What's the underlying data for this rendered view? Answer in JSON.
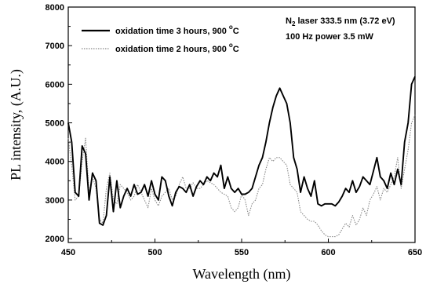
{
  "chart_data": {
    "type": "line",
    "title": "",
    "xlabel": "Wavelength (nm)",
    "ylabel": "PL intensity, (A.U.)",
    "xlim": [
      450,
      650
    ],
    "ylim": [
      1900,
      8000
    ],
    "x_ticks": [
      450,
      500,
      550,
      600,
      650
    ],
    "x_tick_labels": [
      "450",
      "500",
      "550",
      "600",
      "650"
    ],
    "y_ticks": [
      2000,
      3000,
      4000,
      5000,
      6000,
      7000,
      8000
    ],
    "y_tick_labels": [
      "2000",
      "3000",
      "4000",
      "5000",
      "6000",
      "7000",
      "8000"
    ],
    "grid": false,
    "legend_position": "top-left",
    "annotations": [
      {
        "main": "N",
        "sub": "2",
        "rest": " laser 333.5 nm (3.72 eV)"
      },
      {
        "main": "100 Hz power 3.5 mW",
        "sub": "",
        "rest": ""
      }
    ],
    "series": [
      {
        "name": "oxidation time 3 hours, 900 °C",
        "legend_main": "oxidation time 3 hours, 900 ",
        "legend_sup": "o",
        "legend_tail": "C",
        "color": "#000000",
        "line_style": "solid",
        "x": [
          450,
          452,
          454,
          456,
          458,
          460,
          462,
          464,
          466,
          468,
          470,
          472,
          474,
          476,
          478,
          480,
          482,
          484,
          486,
          488,
          490,
          492,
          494,
          496,
          498,
          500,
          502,
          504,
          506,
          508,
          510,
          512,
          514,
          516,
          518,
          520,
          522,
          524,
          526,
          528,
          530,
          532,
          534,
          536,
          538,
          540,
          542,
          544,
          546,
          548,
          550,
          552,
          554,
          556,
          558,
          560,
          562,
          564,
          566,
          568,
          570,
          572,
          574,
          576,
          578,
          580,
          582,
          584,
          586,
          588,
          590,
          592,
          594,
          596,
          598,
          600,
          602,
          604,
          606,
          608,
          610,
          612,
          614,
          616,
          618,
          620,
          622,
          624,
          626,
          628,
          630,
          632,
          634,
          636,
          638,
          640,
          642,
          644,
          646,
          648,
          650
        ],
        "y": [
          5000,
          4500,
          3200,
          3100,
          4400,
          4200,
          3000,
          3700,
          3500,
          2400,
          2350,
          2600,
          3600,
          2700,
          3500,
          2800,
          3100,
          3300,
          3100,
          3400,
          3150,
          3200,
          3400,
          3100,
          3500,
          3150,
          3000,
          3600,
          3500,
          3100,
          2850,
          3200,
          3350,
          3300,
          3200,
          3400,
          3100,
          3350,
          3500,
          3400,
          3600,
          3500,
          3700,
          3600,
          3900,
          3300,
          3600,
          3300,
          3200,
          3300,
          3150,
          3150,
          3200,
          3300,
          3600,
          3900,
          4100,
          4500,
          5000,
          5400,
          5700,
          5900,
          5700,
          5500,
          5000,
          4100,
          3800,
          3200,
          3600,
          3300,
          3100,
          3500,
          2900,
          2850,
          2900,
          2900,
          2900,
          2850,
          2950,
          3100,
          3300,
          3200,
          3500,
          3200,
          3350,
          3600,
          3500,
          3400,
          3750,
          4100,
          3600,
          3500,
          3300,
          3700,
          3400,
          3800,
          3400,
          4500,
          5000,
          6000,
          6200
        ]
      },
      {
        "name": "oxidation time 2 hours, 900 °C",
        "legend_main": "oxidation time 2 hours, 900 ",
        "legend_sup": "o",
        "legend_tail": "C",
        "color": "#888888",
        "line_style": "dotted",
        "x": [
          450,
          452,
          454,
          456,
          458,
          460,
          462,
          464,
          466,
          468,
          470,
          472,
          474,
          476,
          478,
          480,
          482,
          484,
          486,
          488,
          490,
          492,
          494,
          496,
          498,
          500,
          502,
          504,
          506,
          508,
          510,
          512,
          514,
          516,
          518,
          520,
          522,
          524,
          526,
          528,
          530,
          532,
          534,
          536,
          538,
          540,
          542,
          544,
          546,
          548,
          550,
          552,
          554,
          556,
          558,
          560,
          562,
          564,
          566,
          568,
          570,
          572,
          574,
          576,
          578,
          580,
          582,
          584,
          586,
          588,
          590,
          592,
          594,
          596,
          598,
          600,
          602,
          604,
          606,
          608,
          610,
          612,
          614,
          616,
          618,
          620,
          622,
          624,
          626,
          628,
          630,
          632,
          634,
          636,
          638,
          640,
          642,
          644,
          646,
          648,
          650
        ],
        "y": [
          4600,
          3900,
          3000,
          3100,
          4000,
          4600,
          3200,
          3600,
          3300,
          2500,
          2400,
          3300,
          3700,
          3000,
          2900,
          3400,
          3300,
          3200,
          3000,
          3100,
          3400,
          3200,
          3000,
          2800,
          3300,
          3000,
          2850,
          3100,
          3200,
          3300,
          3000,
          3100,
          3400,
          3600,
          3300,
          3300,
          3450,
          3300,
          3300,
          3400,
          3500,
          3450,
          3400,
          3300,
          3200,
          3150,
          3100,
          2800,
          2700,
          2800,
          3150,
          3000,
          2600,
          2900,
          3000,
          3300,
          3400,
          3800,
          4100,
          4000,
          4100,
          4100,
          4000,
          3900,
          3400,
          3300,
          3200,
          2700,
          2600,
          2500,
          2450,
          2450,
          2350,
          2200,
          2100,
          2050,
          2050,
          2050,
          2100,
          2250,
          2400,
          2300,
          2600,
          2350,
          2500,
          2800,
          2600,
          3000,
          3150,
          3350,
          3000,
          3300,
          3200,
          3400,
          3600,
          4100,
          3300,
          3800,
          4300,
          5000,
          5200
        ]
      }
    ]
  }
}
